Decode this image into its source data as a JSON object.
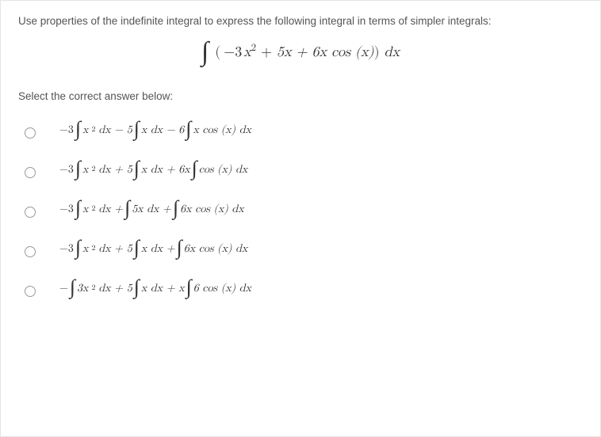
{
  "colors": {
    "border": "#e5e5e5",
    "text": "#555",
    "formula": "#333",
    "background": "#ffffff",
    "radio_border": "#999"
  },
  "typography": {
    "body_font": "Helvetica Neue, Arial, sans-serif",
    "math_font": "Cambria Math, Latin Modern Math, serif",
    "prompt_fontsize": 13.5,
    "main_integral_fontsize": 18,
    "option_fontsize": 14,
    "integral_symbol_fontsize_main": 34,
    "integral_symbol_fontsize_option": 26
  },
  "prompt": "Use properties of the indefinite integral to express the following integral in terms of simpler integrals:",
  "main_integral": {
    "pieces": {
      "lparen": "(",
      "term1_coef": "−3",
      "var": "x",
      "exp2": "2",
      "plus": " + ",
      "term2": "5x",
      "term3_pre": " + 6x cos ",
      "term3_arg": "(x)",
      "rparen": ")",
      "dx": " dx"
    }
  },
  "select_label": "Select the correct answer below:",
  "options": [
    {
      "key": "a",
      "segments": [
        {
          "t": "−3 "
        },
        {
          "int": true
        },
        {
          "t": " x",
          "it": true
        },
        {
          "t": "2",
          "sup": true
        },
        {
          "t": " dx − 5 ",
          "mix": true
        },
        {
          "int": true
        },
        {
          "t": " x dx − 6 ",
          "mix": true
        },
        {
          "int": true
        },
        {
          "t": " x cos (x) dx",
          "mix": true
        }
      ]
    },
    {
      "key": "b",
      "segments": [
        {
          "t": "−3 "
        },
        {
          "int": true
        },
        {
          "t": " x",
          "it": true
        },
        {
          "t": "2",
          "sup": true
        },
        {
          "t": " dx + 5 ",
          "mix": true
        },
        {
          "int": true
        },
        {
          "t": " x dx + 6x ",
          "mix": true
        },
        {
          "int": true
        },
        {
          "t": " cos (x) dx",
          "mix": true
        }
      ]
    },
    {
      "key": "c",
      "segments": [
        {
          "t": "−3 "
        },
        {
          "int": true
        },
        {
          "t": " x",
          "it": true
        },
        {
          "t": "2",
          "sup": true
        },
        {
          "t": " dx + ",
          "mix": true
        },
        {
          "int": true
        },
        {
          "t": " 5x dx + ",
          "mix": true
        },
        {
          "int": true
        },
        {
          "t": " 6x cos (x) dx",
          "mix": true
        }
      ]
    },
    {
      "key": "d",
      "segments": [
        {
          "t": "−3 "
        },
        {
          "int": true
        },
        {
          "t": " x",
          "it": true
        },
        {
          "t": "2",
          "sup": true
        },
        {
          "t": " dx + 5 ",
          "mix": true
        },
        {
          "int": true
        },
        {
          "t": " x dx + ",
          "mix": true
        },
        {
          "int": true
        },
        {
          "t": " 6x cos (x) dx",
          "mix": true
        }
      ]
    },
    {
      "key": "e",
      "segments": [
        {
          "t": "− "
        },
        {
          "int": true
        },
        {
          "t": " 3x",
          "it": true
        },
        {
          "t": "2",
          "sup": true
        },
        {
          "t": " dx + 5 ",
          "mix": true
        },
        {
          "int": true
        },
        {
          "t": " x dx + x ",
          "mix": true
        },
        {
          "int": true
        },
        {
          "t": " 6 cos (x) dx",
          "mix": true
        }
      ]
    }
  ]
}
